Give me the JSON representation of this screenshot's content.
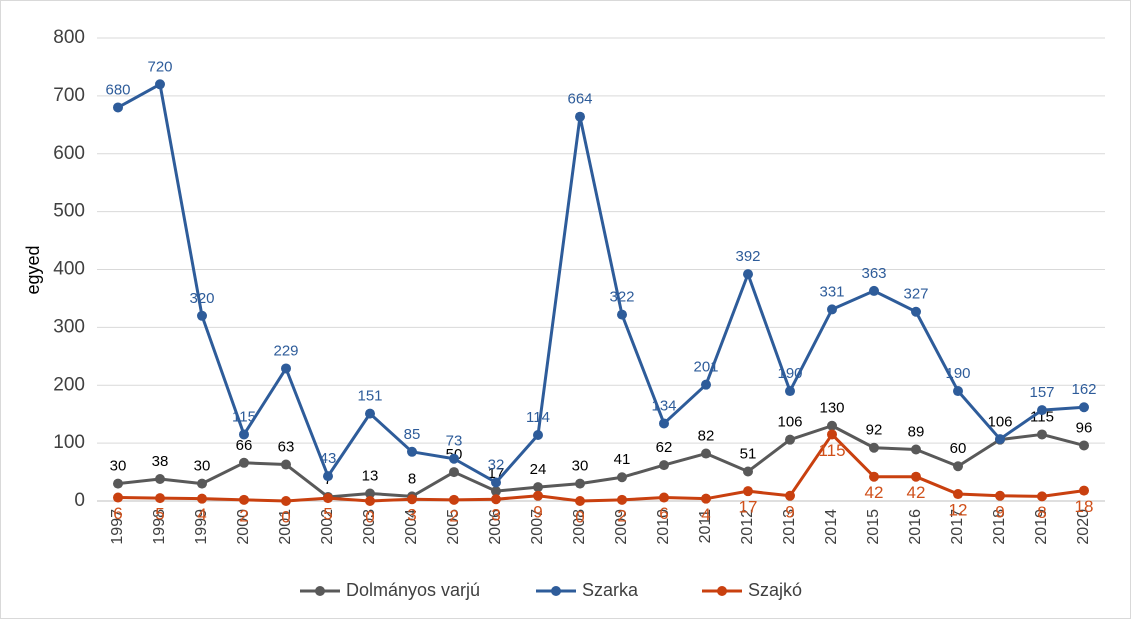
{
  "chart_data": {
    "type": "line",
    "y_label": "egyed",
    "categories": [
      "1997",
      "1998",
      "1999",
      "2000",
      "2001",
      "2002",
      "2003",
      "2004",
      "2005",
      "2006",
      "2007",
      "2008",
      "2009",
      "2010",
      "2011",
      "2012",
      "2013",
      "2014",
      "2015",
      "2016",
      "2017",
      "2018",
      "2019",
      "2020"
    ],
    "series": [
      {
        "name": "Dolmányos varjú",
        "color": "#595959",
        "label_color": "#000000",
        "values": [
          30,
          38,
          30,
          66,
          63,
          7,
          13,
          8,
          50,
          17,
          24,
          30,
          41,
          62,
          82,
          51,
          106,
          130,
          92,
          89,
          60,
          106,
          115,
          96
        ]
      },
      {
        "name": "Szarka",
        "color": "#2e5c9a",
        "label_color": "#2e5c9a",
        "values": [
          680,
          720,
          320,
          115,
          229,
          43,
          151,
          85,
          73,
          32,
          114,
          664,
          322,
          134,
          201,
          392,
          190,
          331,
          363,
          327,
          190,
          107,
          157,
          162
        ],
        "value_labels": [
          "680",
          "720",
          "320",
          "115",
          "229",
          "43",
          "151",
          "85",
          "73",
          "32",
          "114",
          "664",
          "322",
          "134",
          "201",
          "392",
          "190",
          "331",
          "363",
          "327",
          "190",
          null,
          "157",
          "162"
        ]
      },
      {
        "name": "Szajkó",
        "color": "#c9400f",
        "label_color": "#d0501a",
        "values": [
          6,
          5,
          4,
          2,
          0,
          5,
          0,
          3,
          2,
          3,
          9,
          0,
          2,
          6,
          4,
          17,
          9,
          115,
          42,
          42,
          12,
          9,
          8,
          18
        ]
      }
    ],
    "ylim": [
      0,
      800
    ],
    "yticks": [
      0,
      100,
      200,
      300,
      400,
      500,
      600,
      700,
      800
    ],
    "grid": true,
    "legend": "bottom"
  }
}
